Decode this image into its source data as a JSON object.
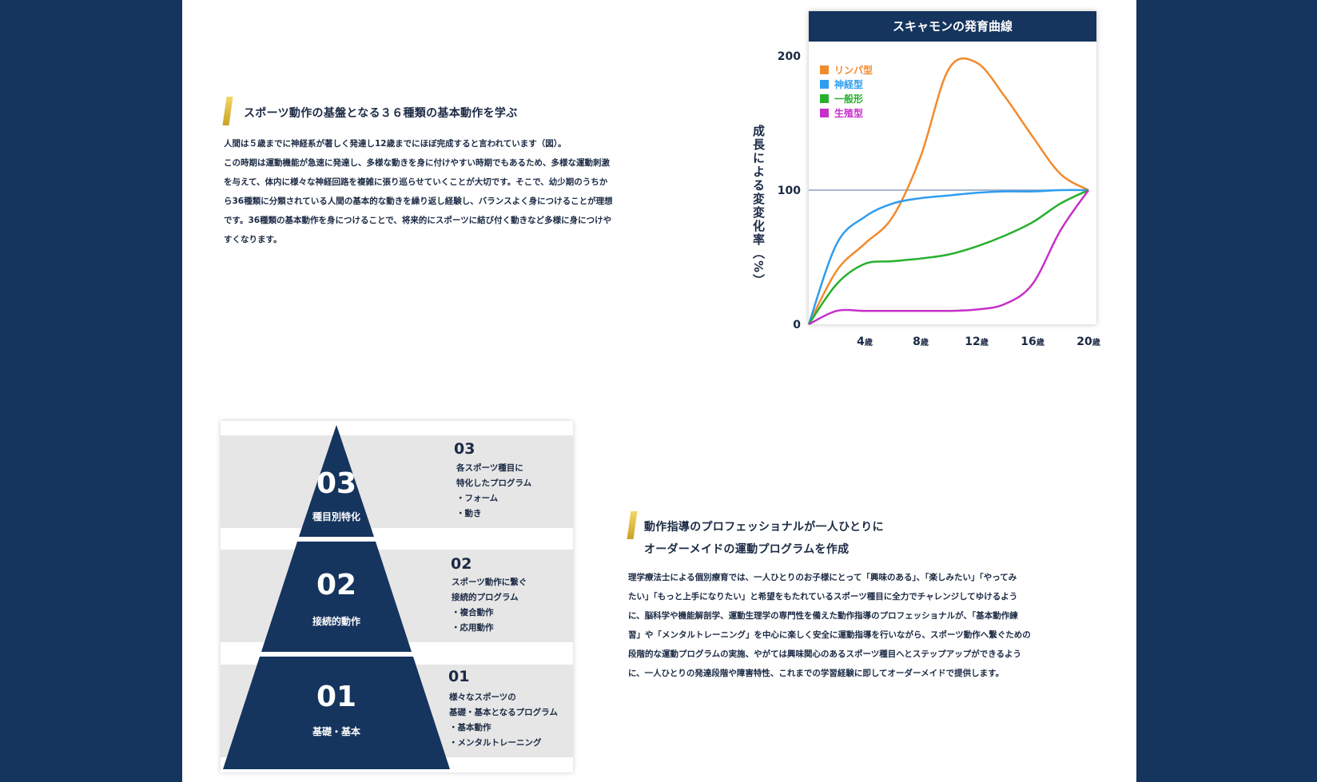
{
  "section1": {
    "heading": "スポーツ動作の基盤となる３６種類の基本動作を学ぶ",
    "paragraph_lines": [
      "人間は５歳までに神経系が著しく発達し12歳までにほぼ完成すると言われています（図）。",
      "この時期は運動機能が急速に発達し、多様な動きを身に付けやすい時期でもあるため、多様な運動刺激",
      "を与えて、体内に様々な神経回路を複雑に張り巡らせていくことが大切です。そこで、幼少期のうちか",
      "ら36種類に分類されている人間の基本的な動きを繰り返し経験し、バランスよく身につけることが理想",
      "です。36種類の基本動作を身につけることで、将来的にスポーツに結び付く動きなど多様に身につけや",
      "すくなります。"
    ]
  },
  "chart_data": {
    "type": "line",
    "title": "スキャモンの発育曲線",
    "ylabel": "成長による変変化率（%）",
    "xlabel": "",
    "x": [
      0,
      2,
      4,
      6,
      8,
      10,
      12,
      14,
      16,
      18,
      20
    ],
    "xticks": [
      {
        "num": "4",
        "unit": "歳",
        "value": 4
      },
      {
        "num": "8",
        "unit": "歳",
        "value": 8
      },
      {
        "num": "12",
        "unit": "歳",
        "value": 12
      },
      {
        "num": "16",
        "unit": "歳",
        "value": 16
      },
      {
        "num": "20",
        "unit": "歳",
        "value": 20
      }
    ],
    "yticks": [
      "0",
      "100",
      "200"
    ],
    "xlim": [
      0,
      20
    ],
    "ylim": [
      0,
      200
    ],
    "reference_line": 100,
    "legend_position": "top-left",
    "series": [
      {
        "name": "リンパ型",
        "color": "#f28a2e",
        "values": [
          0,
          40,
          60,
          80,
          125,
          190,
          195,
          170,
          140,
          112,
          100
        ]
      },
      {
        "name": "神経型",
        "color": "#2e9df0",
        "values": [
          0,
          60,
          80,
          90,
          94,
          96,
          98,
          99,
          99,
          100,
          100
        ]
      },
      {
        "name": "一般形",
        "color": "#27b02e",
        "values": [
          0,
          30,
          45,
          47,
          49,
          52,
          58,
          66,
          76,
          90,
          100
        ]
      },
      {
        "name": "生殖型",
        "color": "#c630c8",
        "values": [
          0,
          10,
          10,
          10,
          10,
          10,
          11,
          15,
          30,
          70,
          100
        ]
      }
    ]
  },
  "pyramid": {
    "tiers": [
      {
        "num": "03",
        "label": "種目別特化",
        "desc_lines": [
          "各スポーツ種目に",
          "特化したプログラム",
          "・フォーム",
          "・動き"
        ]
      },
      {
        "num": "02",
        "label": "接続的動作",
        "desc_lines": [
          "スポーツ動作に繋ぐ",
          "接続的プログラム",
          "・複合動作",
          "・応用動作"
        ]
      },
      {
        "num": "01",
        "label": "基礎・基本",
        "desc_lines": [
          "様々なスポーツの",
          "基礎・基本となるプログラム",
          "・基本動作",
          "・メンタルトレーニング"
        ]
      }
    ]
  },
  "section2": {
    "heading_lines": [
      "動作指導のプロフェッショナルが一人ひとりに",
      "オーダーメイドの運動プログラムを作成"
    ],
    "paragraph_lines": [
      "理学療法士による個別療育では、一人ひとりのお子様にとって「興味のある」、「楽しみたい」「やってみ",
      "たい」「もっと上手になりたい」と希望をもたれているスポーツ種目に全力でチャレンジしてゆけるよう",
      "に、脳科学や機能解剖学、運動生理学の専門性を備えた動作指導のプロフェッショナルが、「基本動作練",
      "習」や「メンタルトレーニング」を中心に楽しく安全に運動指導を行いながら、スポーツ動作へ繋ぐための",
      "段階的な運動プログラムの実施、やがては興味関心のあるスポーツ種目へとステップアップができるよう",
      "に、一人ひとりの発達段階や障害特性、これまでの学習経験に即してオーダーメイドで提供します。"
    ]
  }
}
